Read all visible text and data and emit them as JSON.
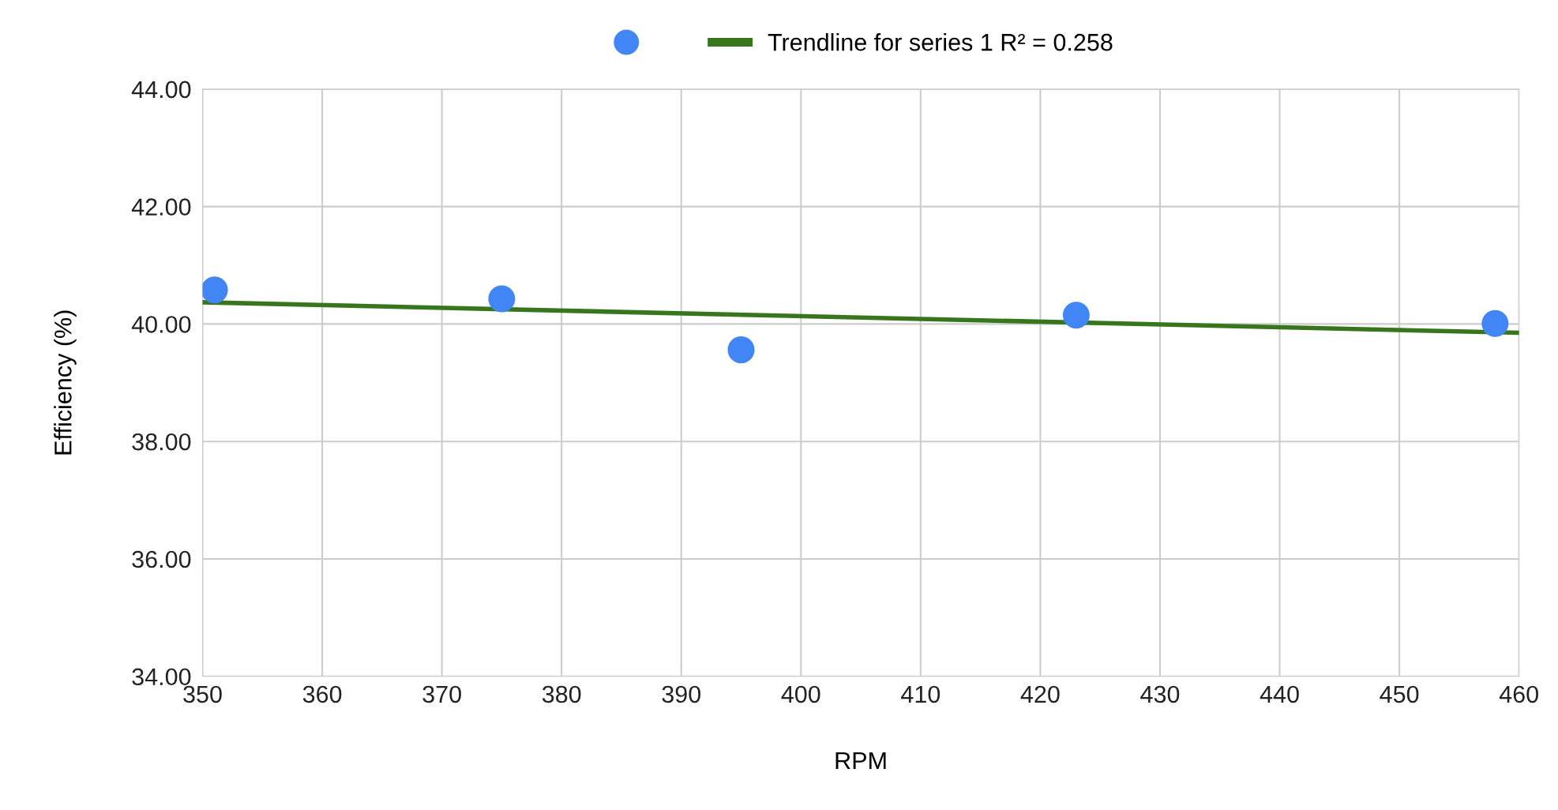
{
  "chart_data": {
    "type": "scatter",
    "xlabel": "RPM",
    "ylabel": "Efficiency (%)",
    "series": [
      {
        "color": "#4285f4",
        "x": [
          351,
          375,
          395,
          423,
          458
        ],
        "values": [
          40.58,
          40.43,
          39.56,
          40.15,
          40.01
        ],
        "marker": "circle"
      },
      {
        "type": "line",
        "name": "Trendline for series 1 R² = 0.258",
        "color": "#38761d",
        "x": [
          350,
          460
        ],
        "values": [
          40.37,
          39.85
        ],
        "marker": "none",
        "line_style": "solid"
      }
    ],
    "xlim": [
      350,
      460
    ],
    "xticks": [
      350,
      360,
      370,
      380,
      390,
      400,
      410,
      420,
      430,
      440,
      450,
      460
    ],
    "ylim": [
      34,
      44
    ],
    "yticks": [
      {
        "value": 34,
        "label": "34.00"
      },
      {
        "value": 36,
        "label": "36.00"
      },
      {
        "value": 38,
        "label": "38.00"
      },
      {
        "value": 40,
        "label": "40.00"
      },
      {
        "value": 42,
        "label": "42.00"
      },
      {
        "value": 44,
        "label": "44.00"
      }
    ],
    "grid": true,
    "legend": "top"
  }
}
